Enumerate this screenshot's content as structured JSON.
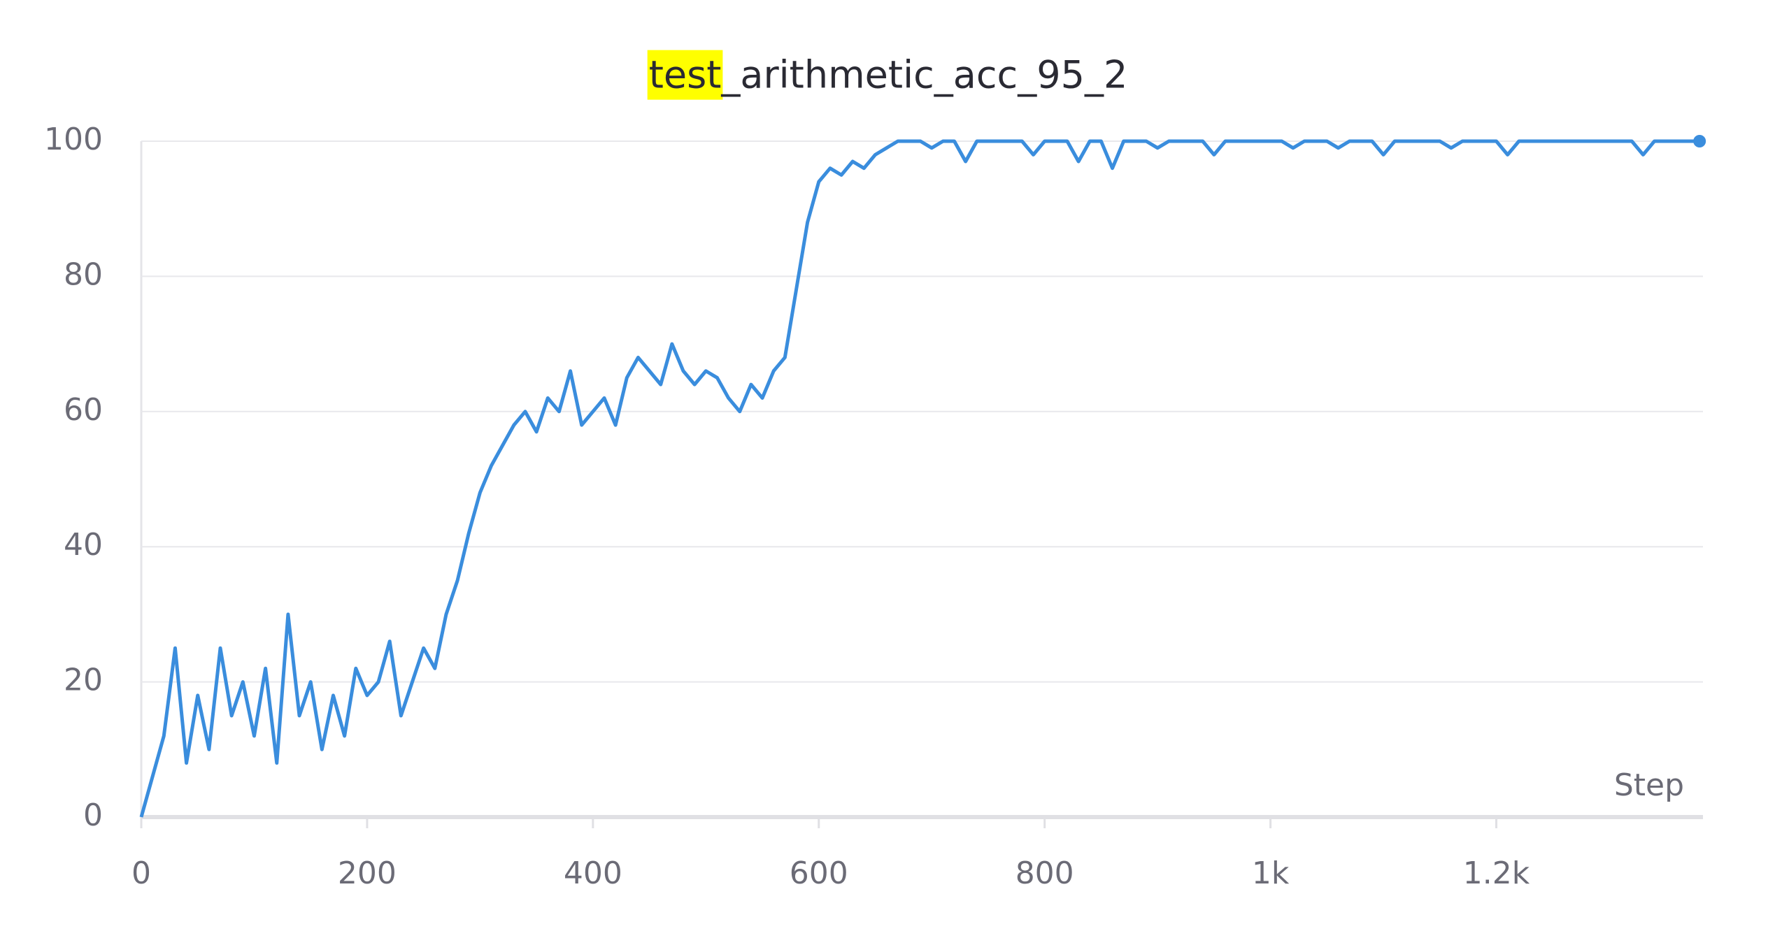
{
  "chart_data": {
    "type": "line",
    "title": "test_arithmetic_acc_95_2",
    "xlabel": "Step",
    "x": [
      0,
      10,
      20,
      30,
      40,
      50,
      60,
      70,
      80,
      90,
      100,
      110,
      120,
      130,
      140,
      150,
      160,
      170,
      180,
      190,
      200,
      210,
      220,
      230,
      240,
      250,
      260,
      270,
      280,
      290,
      300,
      310,
      320,
      330,
      340,
      350,
      360,
      370,
      380,
      390,
      400,
      410,
      420,
      430,
      440,
      450,
      460,
      470,
      480,
      490,
      500,
      510,
      520,
      530,
      540,
      550,
      560,
      570,
      580,
      590,
      600,
      610,
      620,
      630,
      640,
      650,
      660,
      670,
      680,
      690,
      700,
      710,
      720,
      730,
      740,
      750,
      760,
      770,
      780,
      790,
      800,
      810,
      820,
      830,
      840,
      850,
      860,
      870,
      880,
      890,
      900,
      910,
      920,
      930,
      940,
      950,
      960,
      970,
      980,
      990,
      1000,
      1010,
      1020,
      1030,
      1040,
      1050,
      1060,
      1070,
      1080,
      1090,
      1100,
      1110,
      1120,
      1130,
      1140,
      1150,
      1160,
      1170,
      1180,
      1190,
      1200,
      1210,
      1220,
      1230,
      1240,
      1250,
      1260,
      1270,
      1280,
      1290,
      1300,
      1310,
      1320,
      1330,
      1340,
      1350,
      1360,
      1370,
      1380
    ],
    "values": [
      0,
      6,
      12,
      25,
      8,
      18,
      10,
      25,
      15,
      20,
      12,
      22,
      8,
      30,
      15,
      20,
      10,
      18,
      12,
      22,
      18,
      20,
      26,
      15,
      20,
      25,
      22,
      30,
      35,
      42,
      48,
      52,
      55,
      58,
      60,
      57,
      62,
      60,
      66,
      58,
      60,
      62,
      58,
      65,
      68,
      66,
      64,
      70,
      66,
      64,
      66,
      65,
      62,
      60,
      64,
      62,
      66,
      68,
      78,
      88,
      94,
      96,
      95,
      97,
      96,
      98,
      99,
      100,
      100,
      100,
      99,
      100,
      100,
      97,
      100,
      100,
      100,
      100,
      100,
      98,
      100,
      100,
      100,
      97,
      100,
      100,
      96,
      100,
      100,
      100,
      99,
      100,
      100,
      100,
      100,
      98,
      100,
      100,
      100,
      100,
      100,
      100,
      99,
      100,
      100,
      100,
      99,
      100,
      100,
      100,
      98,
      100,
      100,
      100,
      100,
      100,
      99,
      100,
      100,
      100,
      100,
      98,
      100,
      100,
      100,
      100,
      100,
      100,
      100,
      100,
      100,
      100,
      100,
      98,
      100,
      100,
      100,
      100,
      100
    ],
    "color": "#3a8ddd",
    "xlim": [
      0,
      1383
    ],
    "ylim": [
      0,
      100
    ],
    "xticks": [
      0,
      200,
      400,
      600,
      800,
      {
        "value": 1000,
        "label": "1k"
      },
      {
        "value": 1200,
        "label": "1.2k"
      }
    ],
    "yticks": [
      0,
      20,
      40,
      60,
      80,
      100
    ],
    "grid": true
  }
}
